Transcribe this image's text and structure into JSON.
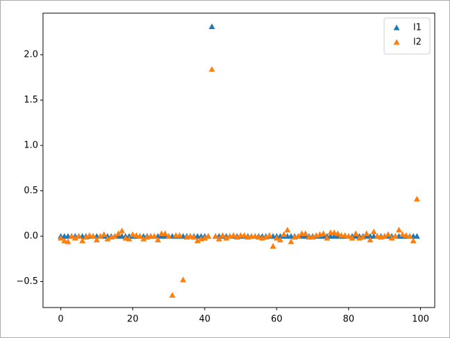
{
  "chart_data": {
    "type": "scatter",
    "x": [
      0,
      1,
      2,
      3,
      4,
      5,
      6,
      7,
      8,
      9,
      10,
      11,
      12,
      13,
      14,
      15,
      16,
      17,
      18,
      19,
      20,
      21,
      22,
      23,
      24,
      25,
      26,
      27,
      28,
      29,
      30,
      31,
      32,
      33,
      34,
      35,
      36,
      37,
      38,
      39,
      40,
      41,
      42,
      43,
      44,
      45,
      46,
      47,
      48,
      49,
      50,
      51,
      52,
      53,
      54,
      55,
      56,
      57,
      58,
      59,
      60,
      61,
      62,
      63,
      64,
      65,
      66,
      67,
      68,
      69,
      70,
      71,
      72,
      73,
      74,
      75,
      76,
      77,
      78,
      79,
      80,
      81,
      82,
      83,
      84,
      85,
      86,
      87,
      88,
      89,
      90,
      91,
      92,
      93,
      94,
      95,
      96,
      97,
      98,
      99
    ],
    "series": [
      {
        "name": "l1",
        "color": "#1f77b4",
        "values": [
          0,
          0,
          0,
          0,
          0,
          0,
          0,
          0,
          0,
          0,
          0,
          0,
          0,
          0,
          0,
          0,
          0,
          0,
          0,
          0,
          0,
          0,
          0,
          0,
          0,
          0,
          0,
          0,
          0,
          0,
          0,
          0,
          0,
          0,
          0,
          0,
          0,
          0,
          0,
          0,
          0,
          0,
          2.31,
          0,
          0,
          0,
          0,
          0,
          0,
          0,
          0,
          0,
          0,
          0,
          0,
          0,
          0,
          0,
          0,
          0,
          0,
          0,
          0,
          0,
          0,
          0,
          0,
          0,
          0,
          0,
          0,
          0,
          0,
          0,
          0,
          0,
          0,
          0,
          0,
          0,
          0,
          0,
          0,
          0,
          0,
          0,
          0,
          0,
          0,
          0,
          0,
          0,
          0,
          0,
          0,
          0,
          0,
          0,
          0,
          0
        ]
      },
      {
        "name": "l2",
        "color": "#ff7f0e",
        "values": [
          -0.02,
          -0.05,
          -0.06,
          0,
          -0.02,
          0,
          -0.05,
          -0.01,
          0.01,
          0,
          -0.04,
          0,
          0.02,
          -0.03,
          -0.01,
          0,
          0.03,
          0.06,
          -0.02,
          -0.03,
          0.02,
          0.01,
          0,
          -0.03,
          -0.01,
          0,
          0,
          -0.04,
          0.03,
          0.03,
          0,
          -0.65,
          0.01,
          0.01,
          -0.48,
          -0.01,
          0,
          -0.01,
          -0.05,
          -0.03,
          -0.02,
          0,
          1.84,
          0,
          -0.03,
          0.01,
          -0.02,
          0,
          0.01,
          -0.01,
          0.01,
          0.01,
          -0.01,
          0,
          0,
          -0.01,
          -0.02,
          -0.01,
          0.01,
          -0.11,
          -0.02,
          -0.04,
          0.02,
          0.07,
          -0.06,
          -0.01,
          0,
          0.03,
          0.03,
          -0.01,
          -0.01,
          0.01,
          0.02,
          0.03,
          -0.02,
          0.04,
          0.04,
          0.03,
          0.01,
          0.01,
          0,
          -0.02,
          0.03,
          -0.02,
          -0.01,
          0.03,
          -0.04,
          0.05,
          0,
          -0.01,
          0,
          0.02,
          -0.02,
          0,
          0.07,
          0.02,
          0.01,
          0,
          -0.05,
          0.41
        ]
      }
    ],
    "xlim": [
      -4.95,
      103.95
    ],
    "xticks": [
      0,
      20,
      40,
      60,
      80,
      100
    ],
    "ylim": [
      -0.786,
      2.458
    ],
    "yticks": [
      {
        "value": -0.5,
        "label": "−0.5"
      },
      {
        "value": 0,
        "label": "0.0"
      },
      0.5,
      {
        "value": 1,
        "label": "1.0"
      },
      1.5,
      {
        "value": 2,
        "label": "2.0"
      }
    ],
    "legend": "upper right"
  }
}
